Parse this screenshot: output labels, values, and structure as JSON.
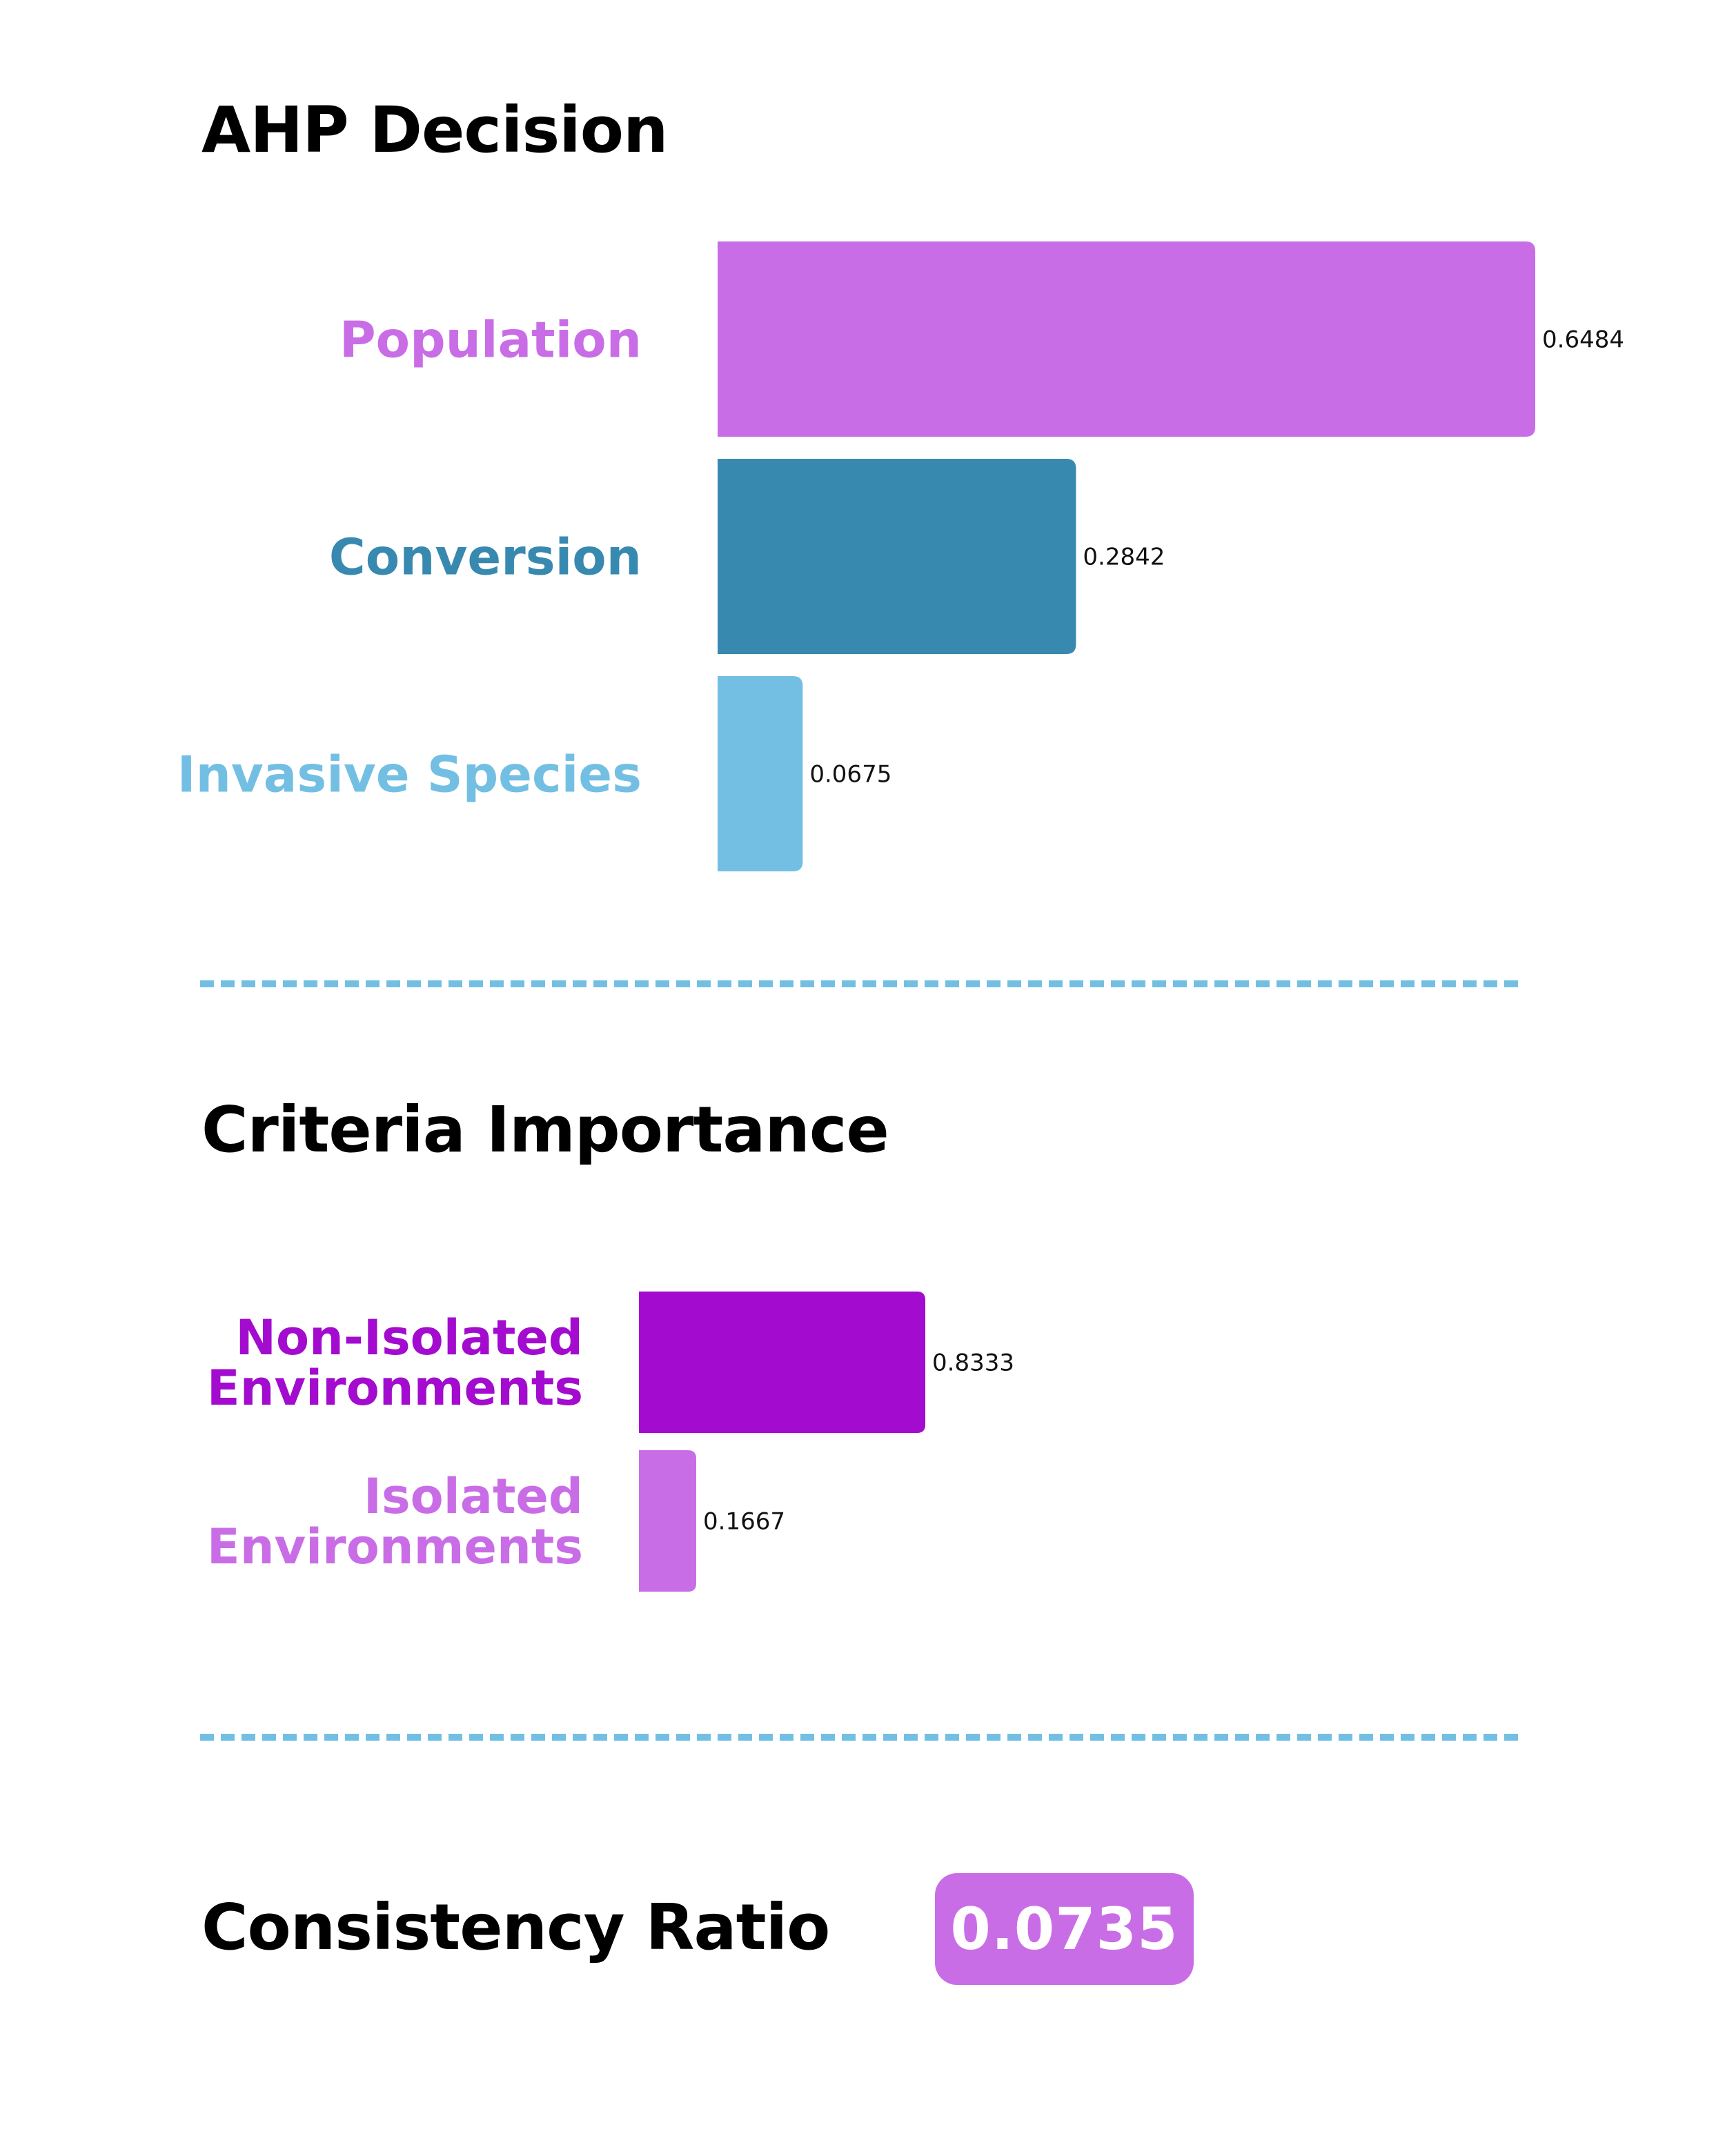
{
  "sections": {
    "ahp_title": "AHP Decision",
    "criteria_title": "Criteria Importance",
    "consistency_title": "Consistency Ratio"
  },
  "consistency": {
    "value": "0.0735",
    "color": "#c96de6"
  },
  "chart_data": [
    {
      "type": "bar",
      "orientation": "horizontal",
      "title": "AHP Decision",
      "categories": [
        "Population",
        "Conversion",
        "Invasive Species"
      ],
      "values": [
        0.6484,
        0.2842,
        0.0675
      ],
      "value_labels": [
        "0.6484",
        "0.2842",
        "0.0675"
      ],
      "colors": [
        "#c96de6",
        "#3889b0",
        "#73bfe3"
      ],
      "xlim": [
        0,
        0.6484
      ],
      "grid": false
    },
    {
      "type": "bar",
      "orientation": "horizontal",
      "title": "Criteria Importance",
      "categories": [
        [
          "Non-Isolated",
          "Environments"
        ],
        [
          "Isolated",
          "Environments"
        ]
      ],
      "values": [
        0.8333,
        0.1667
      ],
      "value_labels": [
        "0.8333",
        "0.1667"
      ],
      "colors": [
        "#a30bcf",
        "#c96de6"
      ],
      "xlim": [
        0,
        0.8333
      ],
      "grid": false
    }
  ]
}
